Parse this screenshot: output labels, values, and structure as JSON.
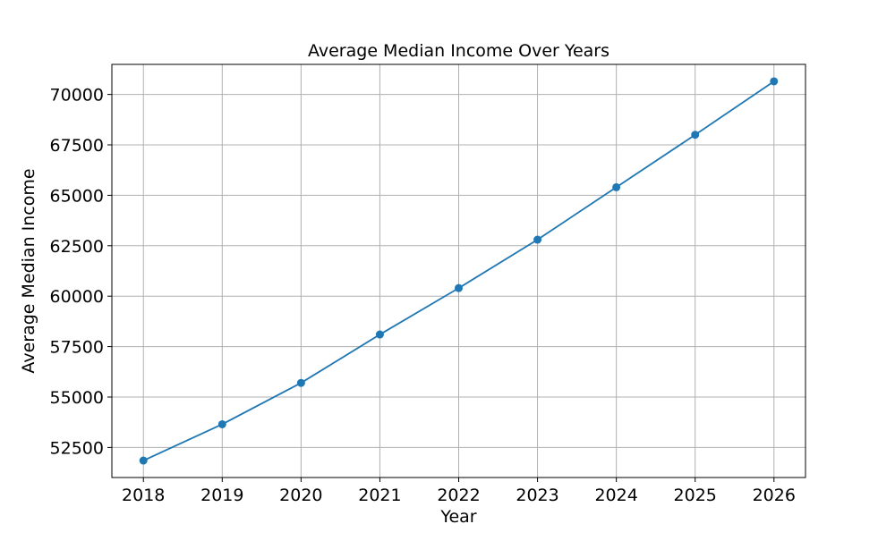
{
  "chart_data": {
    "type": "line",
    "title": "Average Median Income Over Years",
    "xlabel": "Year",
    "ylabel": "Average Median Income",
    "x": [
      "2018",
      "2019",
      "2020",
      "2021",
      "2022",
      "2023",
      "2024",
      "2025",
      "2026"
    ],
    "series": [
      {
        "values": [
          51850,
          53650,
          55700,
          58100,
          60400,
          62800,
          65400,
          68000,
          70650
        ],
        "color": "#1f77b4",
        "marker": "circle"
      }
    ],
    "x_ticks": [
      "2018",
      "2019",
      "2020",
      "2021",
      "2022",
      "2023",
      "2024",
      "2025",
      "2026"
    ],
    "y_ticks": [
      52500,
      55000,
      57500,
      60000,
      62500,
      65000,
      67500,
      70000
    ],
    "y_tick_labels": [
      "52500",
      "55000",
      "57500",
      "60000",
      "62500",
      "65000",
      "67500",
      "70000"
    ],
    "ylim": [
      51010,
      71490
    ],
    "xlim": [
      2017.6,
      2026.4
    ],
    "grid": true,
    "grid_color": "#b0b0b0",
    "legend": false
  }
}
